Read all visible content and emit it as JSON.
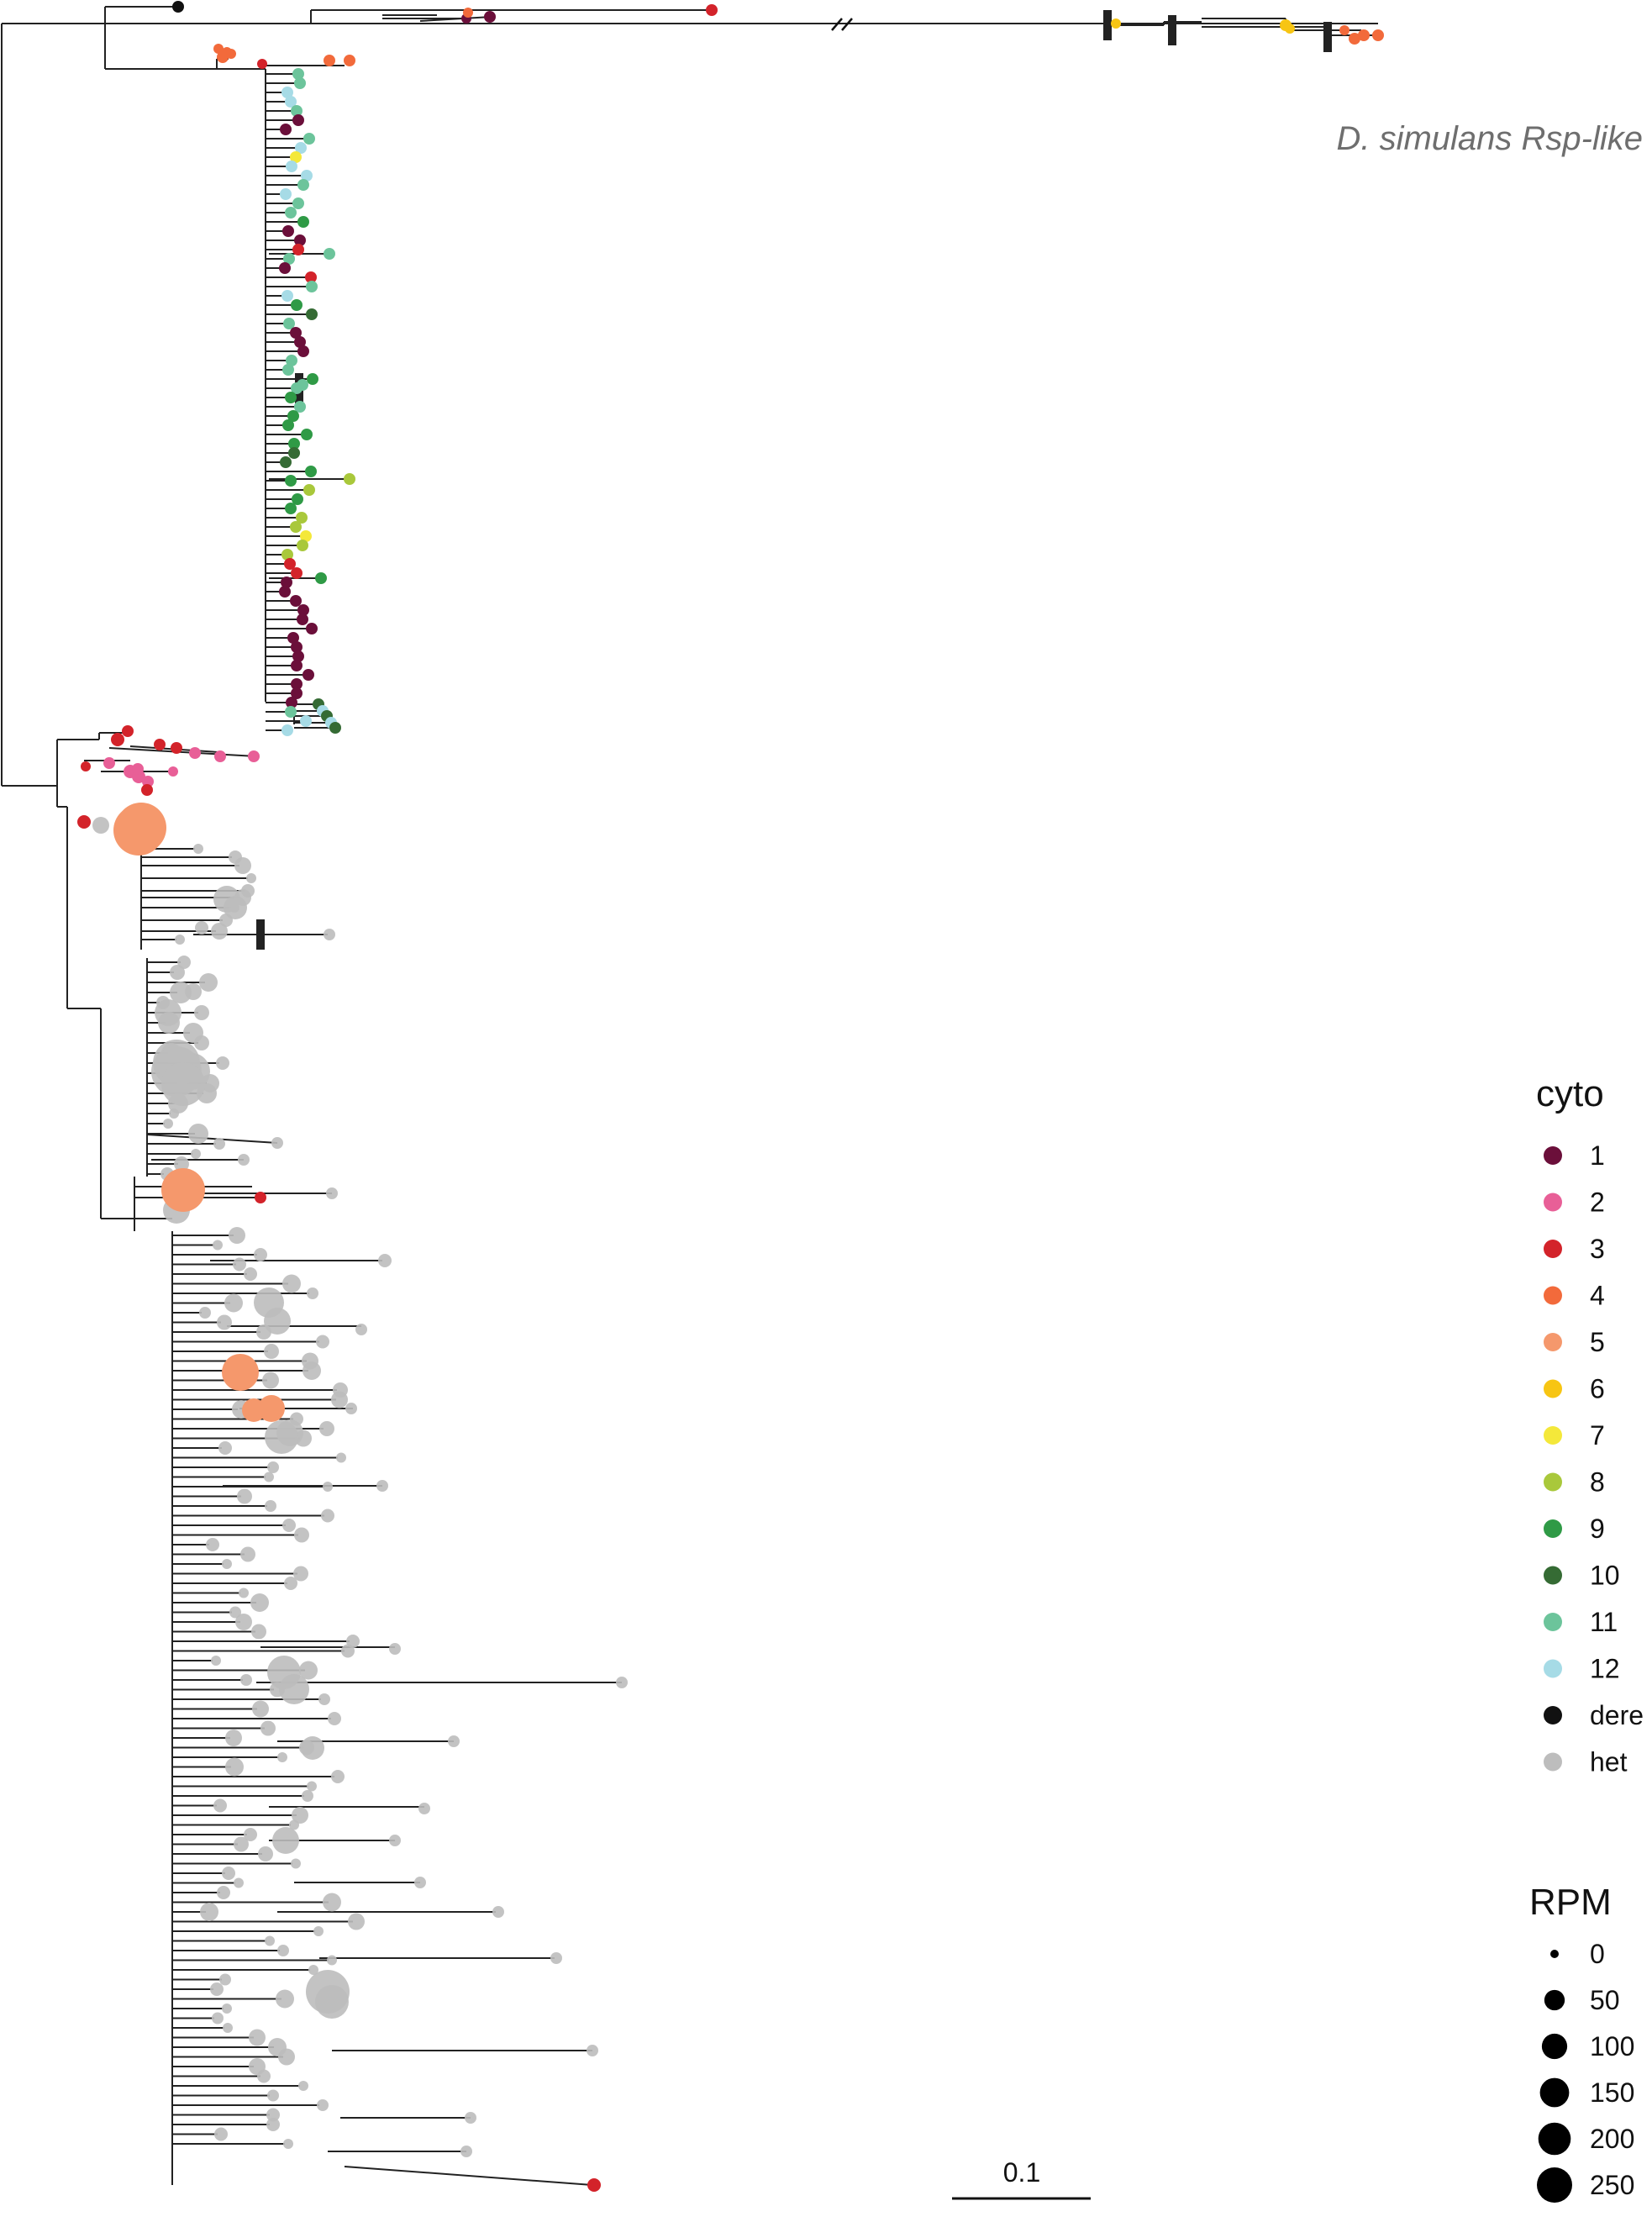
{
  "clade_label": "D. simulans Rsp-like",
  "legend": {
    "cyto_title": "cyto",
    "cyto_items": [
      {
        "label": "1",
        "color": "#6b0f3a"
      },
      {
        "label": "2",
        "color": "#e85f97"
      },
      {
        "label": "3",
        "color": "#d3232a"
      },
      {
        "label": "4",
        "color": "#f26a3b"
      },
      {
        "label": "5",
        "color": "#f5986c"
      },
      {
        "label": "6",
        "color": "#f7c513"
      },
      {
        "label": "7",
        "color": "#f4e83a"
      },
      {
        "label": "8",
        "color": "#a9c83b"
      },
      {
        "label": "9",
        "color": "#2f9a46"
      },
      {
        "label": "10",
        "color": "#356b34"
      },
      {
        "label": "11",
        "color": "#6cc49b"
      },
      {
        "label": "12",
        "color": "#a6dbe6"
      },
      {
        "label": "dere",
        "color": "#111111"
      },
      {
        "label": "het",
        "color": "#bdbdbd"
      }
    ],
    "rpm_title": "RPM",
    "rpm_items": [
      {
        "label": "0",
        "value": 0
      },
      {
        "label": "50",
        "value": 50
      },
      {
        "label": "100",
        "value": 100
      },
      {
        "label": "150",
        "value": 150
      },
      {
        "label": "200",
        "value": 200
      },
      {
        "label": "250",
        "value": 250
      }
    ]
  },
  "scale_bar": {
    "label": "0.1"
  }
}
